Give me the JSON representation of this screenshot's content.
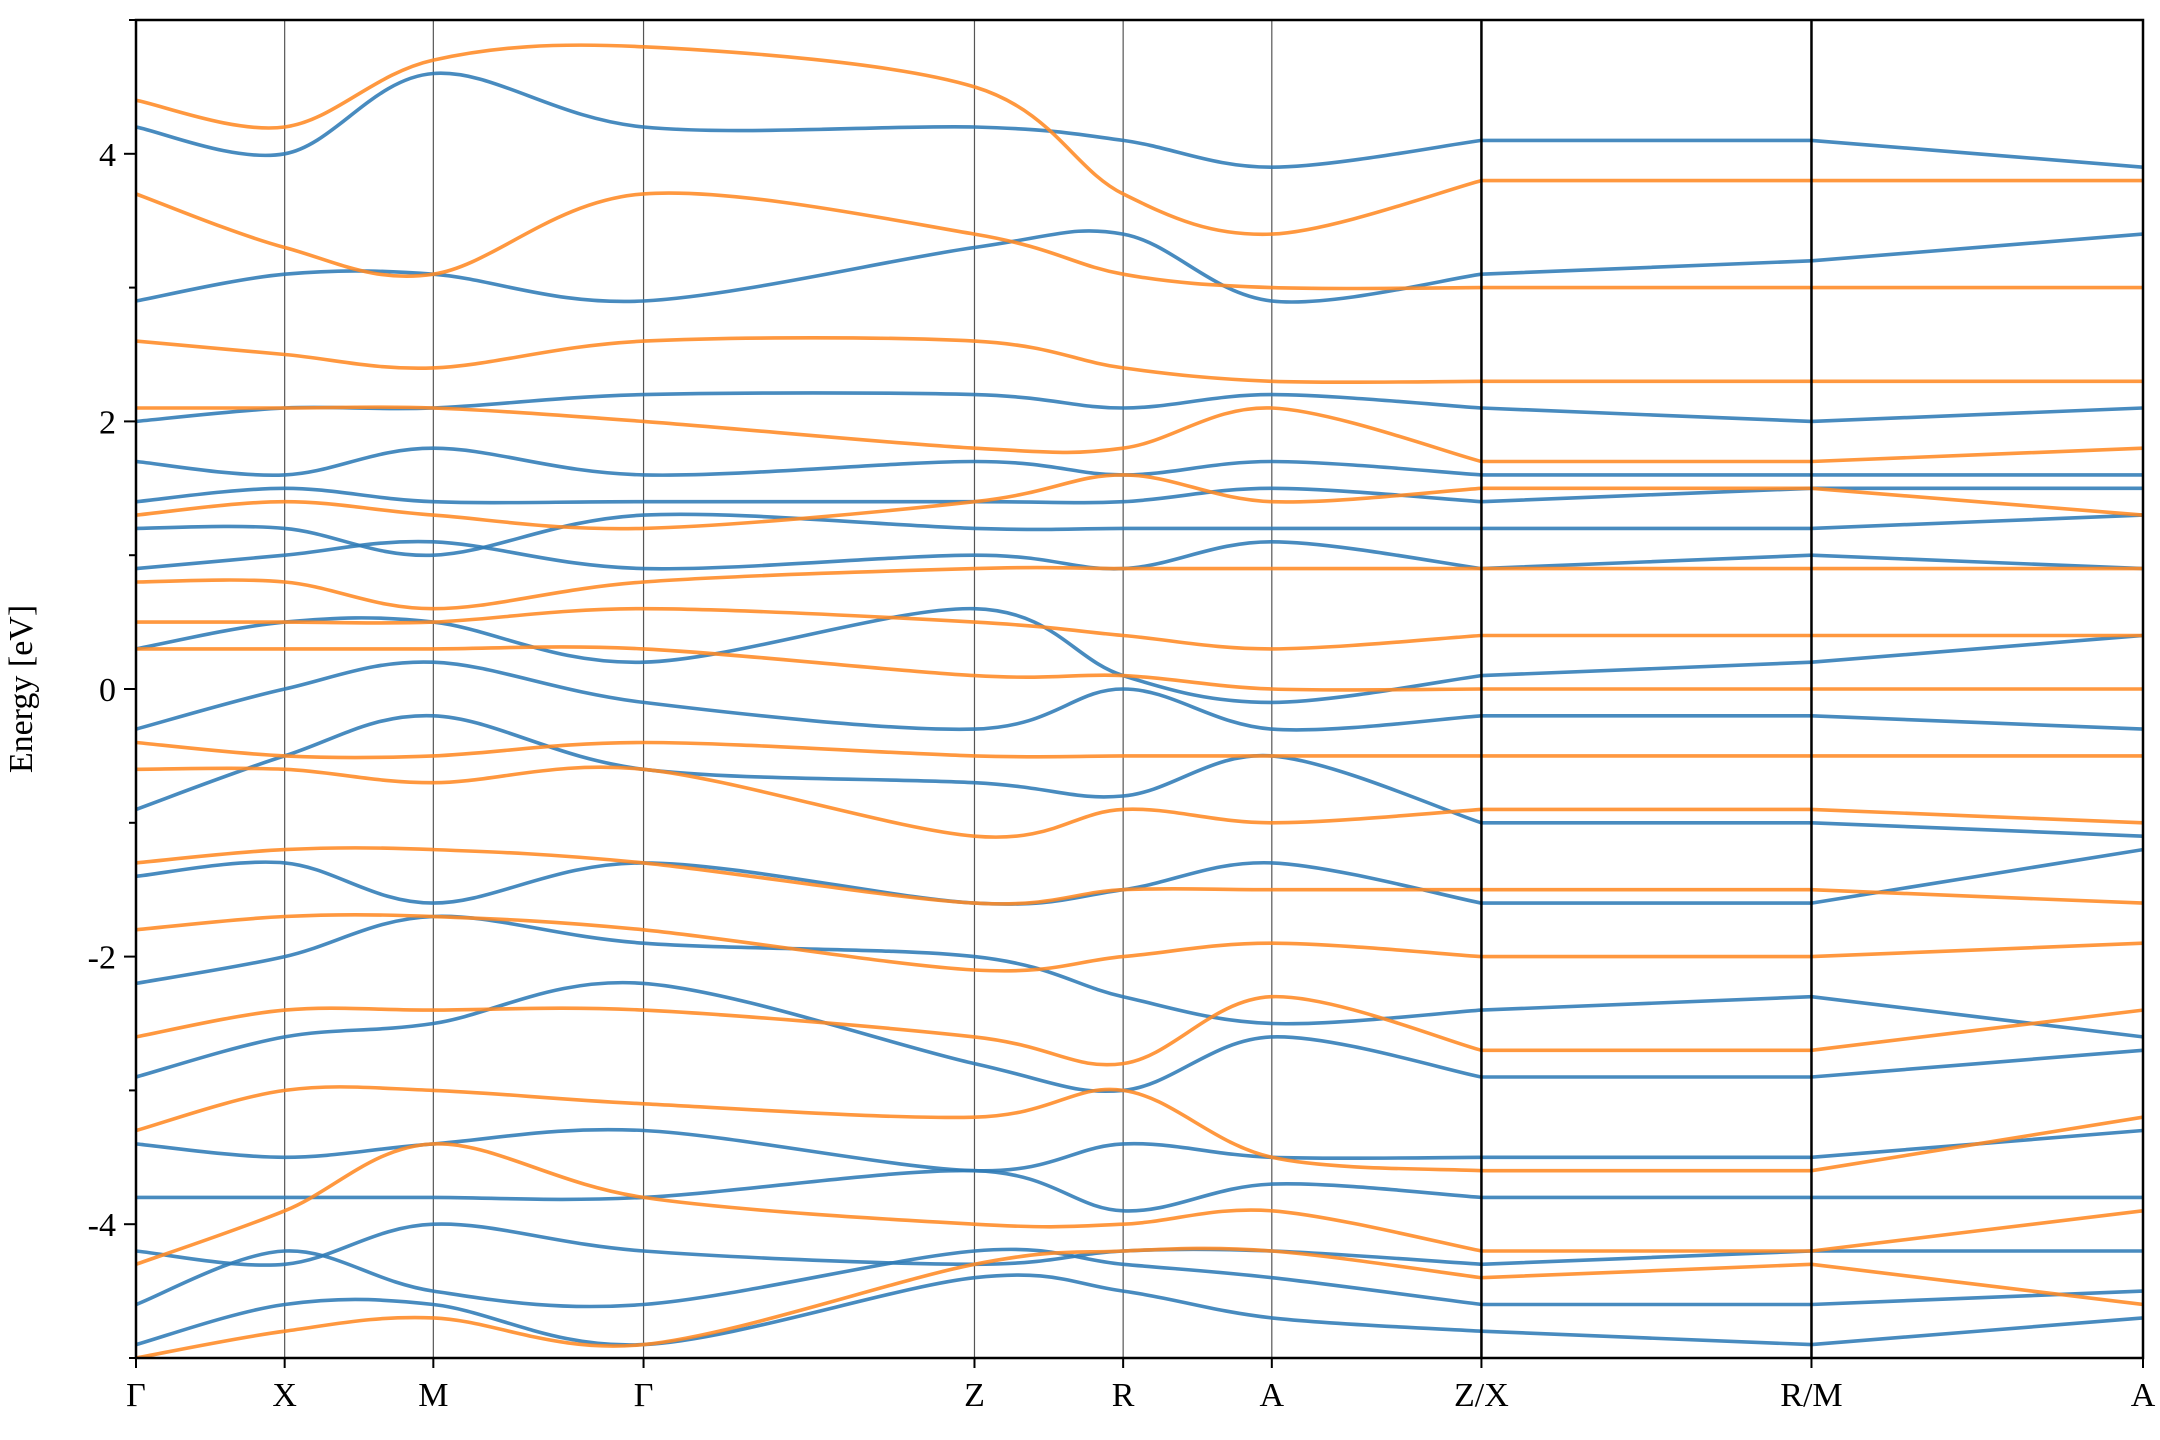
{
  "chart_data": {
    "type": "line",
    "title": "",
    "xlabel": "",
    "ylabel": "Energy [eV]",
    "ylim": [
      -5,
      5
    ],
    "y_ticks": [
      -4,
      -2,
      0,
      2,
      4
    ],
    "grid": false,
    "legend": "none",
    "colors": {
      "spin_up": "#2f7bb6",
      "spin_down": "#ff8a24",
      "kpoint_line": "#555555",
      "axes": "#000000"
    },
    "x_labels": [
      "Γ",
      "X",
      "M",
      "Γ",
      "Z",
      "R",
      "A",
      "Z/X",
      "R/M",
      "A"
    ],
    "kpath_distance": [
      0,
      1.0,
      2.0,
      3.414,
      5.64,
      6.64,
      7.64,
      9.05,
      11.27,
      13.5
    ],
    "segment_breaks": [
      7,
      8
    ],
    "series": [
      {
        "key": "spin_up",
        "color": "#2f7bb6",
        "nodes": [
          [
            -4.9,
            -4.6,
            -4.6,
            -4.9,
            -4.4,
            -4.5,
            -4.7,
            -4.8,
            -4.9,
            -4.7
          ],
          [
            -4.6,
            -4.2,
            -4.5,
            -4.6,
            -4.2,
            -4.3,
            -4.4,
            -4.6,
            -4.6,
            -4.5
          ],
          [
            -4.2,
            -4.3,
            -4.0,
            -4.2,
            -4.3,
            -4.2,
            -4.2,
            -4.3,
            -4.2,
            -4.2
          ],
          [
            -3.8,
            -3.8,
            -3.8,
            -3.8,
            -3.6,
            -3.9,
            -3.7,
            -3.8,
            -3.8,
            -3.8
          ],
          [
            -3.4,
            -3.5,
            -3.4,
            -3.3,
            -3.6,
            -3.4,
            -3.5,
            -3.5,
            -3.5,
            -3.3
          ],
          [
            -2.9,
            -2.6,
            -2.5,
            -2.2,
            -2.8,
            -3.0,
            -2.6,
            -2.9,
            -2.9,
            -2.7
          ],
          [
            -2.2,
            -2.0,
            -1.7,
            -1.9,
            -2.0,
            -2.3,
            -2.5,
            -2.4,
            -2.3,
            -2.6
          ],
          [
            -1.4,
            -1.3,
            -1.6,
            -1.3,
            -1.6,
            -1.5,
            -1.3,
            -1.6,
            -1.6,
            -1.2
          ],
          [
            -0.9,
            -0.5,
            -0.2,
            -0.6,
            -0.7,
            -0.8,
            -0.5,
            -1.0,
            -1.0,
            -1.1
          ],
          [
            -0.3,
            0.0,
            0.2,
            -0.1,
            -0.3,
            0.0,
            -0.3,
            -0.2,
            -0.2,
            -0.3
          ],
          [
            0.3,
            0.5,
            0.5,
            0.2,
            0.6,
            0.1,
            -0.1,
            0.1,
            0.2,
            0.4
          ],
          [
            0.9,
            1.0,
            1.1,
            0.9,
            1.0,
            0.9,
            1.1,
            0.9,
            1.0,
            0.9
          ],
          [
            1.2,
            1.2,
            1.0,
            1.3,
            1.2,
            1.2,
            1.2,
            1.2,
            1.2,
            1.3
          ],
          [
            1.4,
            1.5,
            1.4,
            1.4,
            1.4,
            1.4,
            1.5,
            1.4,
            1.5,
            1.5
          ],
          [
            1.7,
            1.6,
            1.8,
            1.6,
            1.7,
            1.6,
            1.7,
            1.6,
            1.6,
            1.6
          ],
          [
            2.0,
            2.1,
            2.1,
            2.2,
            2.2,
            2.1,
            2.2,
            2.1,
            2.0,
            2.1
          ],
          [
            2.9,
            3.1,
            3.1,
            2.9,
            3.3,
            3.4,
            2.9,
            3.1,
            3.2,
            3.4
          ],
          [
            4.2,
            4.0,
            4.6,
            4.2,
            4.2,
            4.1,
            3.9,
            4.1,
            4.1,
            3.9
          ]
        ]
      },
      {
        "key": "spin_down",
        "color": "#ff8a24",
        "nodes": [
          [
            -5.0,
            -4.8,
            -4.7,
            -4.9,
            -4.3,
            -4.2,
            -4.2,
            -4.4,
            -4.3,
            -4.6
          ],
          [
            -4.3,
            -3.9,
            -3.4,
            -3.8,
            -4.0,
            -4.0,
            -3.9,
            -4.2,
            -4.2,
            -3.9
          ],
          [
            -3.3,
            -3.0,
            -3.0,
            -3.1,
            -3.2,
            -3.0,
            -3.5,
            -3.6,
            -3.6,
            -3.2
          ],
          [
            -2.6,
            -2.4,
            -2.4,
            -2.4,
            -2.6,
            -2.8,
            -2.3,
            -2.7,
            -2.7,
            -2.4
          ],
          [
            -1.8,
            -1.7,
            -1.7,
            -1.8,
            -2.1,
            -2.0,
            -1.9,
            -2.0,
            -2.0,
            -1.9
          ],
          [
            -1.3,
            -1.2,
            -1.2,
            -1.3,
            -1.6,
            -1.5,
            -1.5,
            -1.5,
            -1.5,
            -1.6
          ],
          [
            -0.6,
            -0.6,
            -0.7,
            -0.6,
            -1.1,
            -0.9,
            -1.0,
            -0.9,
            -0.9,
            -1.0
          ],
          [
            -0.4,
            -0.5,
            -0.5,
            -0.4,
            -0.5,
            -0.5,
            -0.5,
            -0.5,
            -0.5,
            -0.5
          ],
          [
            0.3,
            0.3,
            0.3,
            0.3,
            0.1,
            0.1,
            0.0,
            0.0,
            0.0,
            0.0
          ],
          [
            0.5,
            0.5,
            0.5,
            0.6,
            0.5,
            0.4,
            0.3,
            0.4,
            0.4,
            0.4
          ],
          [
            0.8,
            0.8,
            0.6,
            0.8,
            0.9,
            0.9,
            0.9,
            0.9,
            0.9,
            0.9
          ],
          [
            1.3,
            1.4,
            1.3,
            1.2,
            1.4,
            1.6,
            1.4,
            1.5,
            1.5,
            1.3
          ],
          [
            2.1,
            2.1,
            2.1,
            2.0,
            1.8,
            1.8,
            2.1,
            1.7,
            1.7,
            1.8
          ],
          [
            2.6,
            2.5,
            2.4,
            2.6,
            2.6,
            2.4,
            2.3,
            2.3,
            2.3,
            2.3
          ],
          [
            3.7,
            3.3,
            3.1,
            3.7,
            3.4,
            3.1,
            3.0,
            3.0,
            3.0,
            3.0
          ],
          [
            4.4,
            4.2,
            4.7,
            4.8,
            4.5,
            3.7,
            3.4,
            3.8,
            3.8,
            3.8
          ]
        ]
      }
    ]
  }
}
